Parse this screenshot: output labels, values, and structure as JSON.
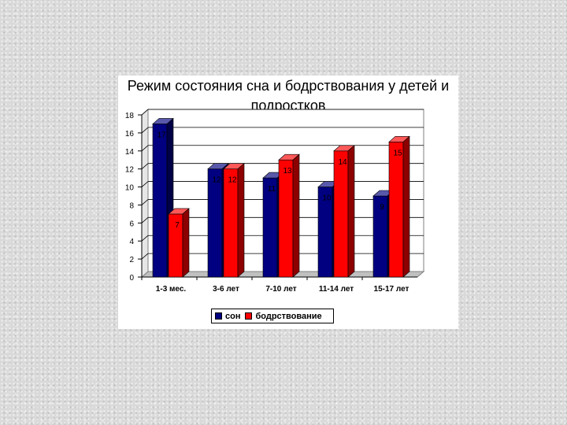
{
  "chart_data": {
    "type": "bar",
    "title": "Режим состояния сна и бодрствования у детей и подростков",
    "categories": [
      "1-3 мес.",
      "3-6 лет",
      "7-10 лет",
      "11-14 лет",
      "15-17 лет"
    ],
    "series": [
      {
        "name": "сон",
        "values": [
          17,
          12,
          11,
          10,
          9
        ],
        "color": "#000080"
      },
      {
        "name": "бодрствование",
        "values": [
          7,
          12,
          13,
          14,
          15
        ],
        "color": "#ff0000"
      }
    ],
    "ylim": [
      0,
      18
    ],
    "yticks": [
      0,
      2,
      4,
      6,
      8,
      10,
      12,
      14,
      16,
      18
    ],
    "grid": true,
    "legend_position": "bottom"
  }
}
